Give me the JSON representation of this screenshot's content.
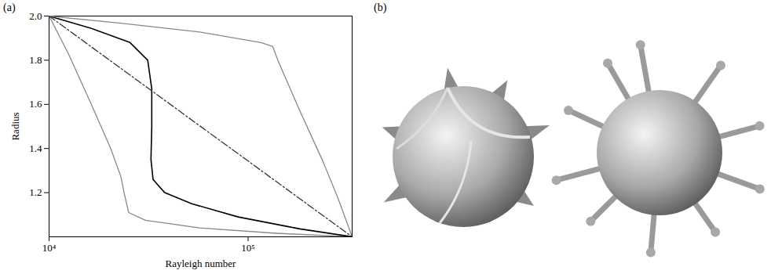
{
  "chart_data": {
    "type": "line",
    "panel_label": "(a)",
    "x_label": "Rayleigh number",
    "y_label": "Radius",
    "log": "x",
    "grid": false,
    "xlim": [
      10000,
      333000
    ],
    "xticks": [
      {
        "value": 10000,
        "label": "10⁴"
      },
      {
        "value": 100000,
        "label": "10⁵"
      }
    ],
    "ylim": [
      1.0,
      2.0
    ],
    "yticks": [
      1.2,
      1.4,
      1.6,
      1.8,
      {
        "value": 2,
        "label": "2.0"
      }
    ],
    "series": [
      {
        "color": "#888888",
        "line_style": "solid",
        "x": [
          10000,
          12500,
          16300,
          20400,
          23000,
          23800,
          25100,
          30500,
          57000,
          139000,
          333000
        ],
        "values": [
          2.0,
          1.83,
          1.6,
          1.4,
          1.27,
          1.2,
          1.11,
          1.075,
          1.04,
          1.016,
          1.0
        ]
      },
      {
        "color": "#000000",
        "line_style": "solid",
        "x": [
          10000,
          16300,
          25500,
          31300,
          32800,
          32800,
          32500,
          33300,
          38100,
          52100,
          89100,
          182000,
          333000
        ],
        "values": [
          2.0,
          1.944,
          1.88,
          1.8,
          1.67,
          1.5,
          1.35,
          1.26,
          1.2,
          1.15,
          1.09,
          1.036,
          1.0
        ]
      },
      {
        "color": "#888888",
        "line_style": "solid",
        "x": [
          10000,
          23400,
          57000,
          116000,
          133000,
          141000,
          182000,
          238000,
          284000,
          333000
        ],
        "values": [
          2.0,
          1.967,
          1.928,
          1.88,
          1.862,
          1.8,
          1.57,
          1.34,
          1.17,
          1.0
        ]
      },
      {
        "color": "#333333",
        "line_style": "dashdot",
        "x": [
          10000,
          333000
        ],
        "values": [
          2.0,
          1.0
        ]
      }
    ]
  },
  "image_panel": {
    "panel_label": "(b)"
  }
}
